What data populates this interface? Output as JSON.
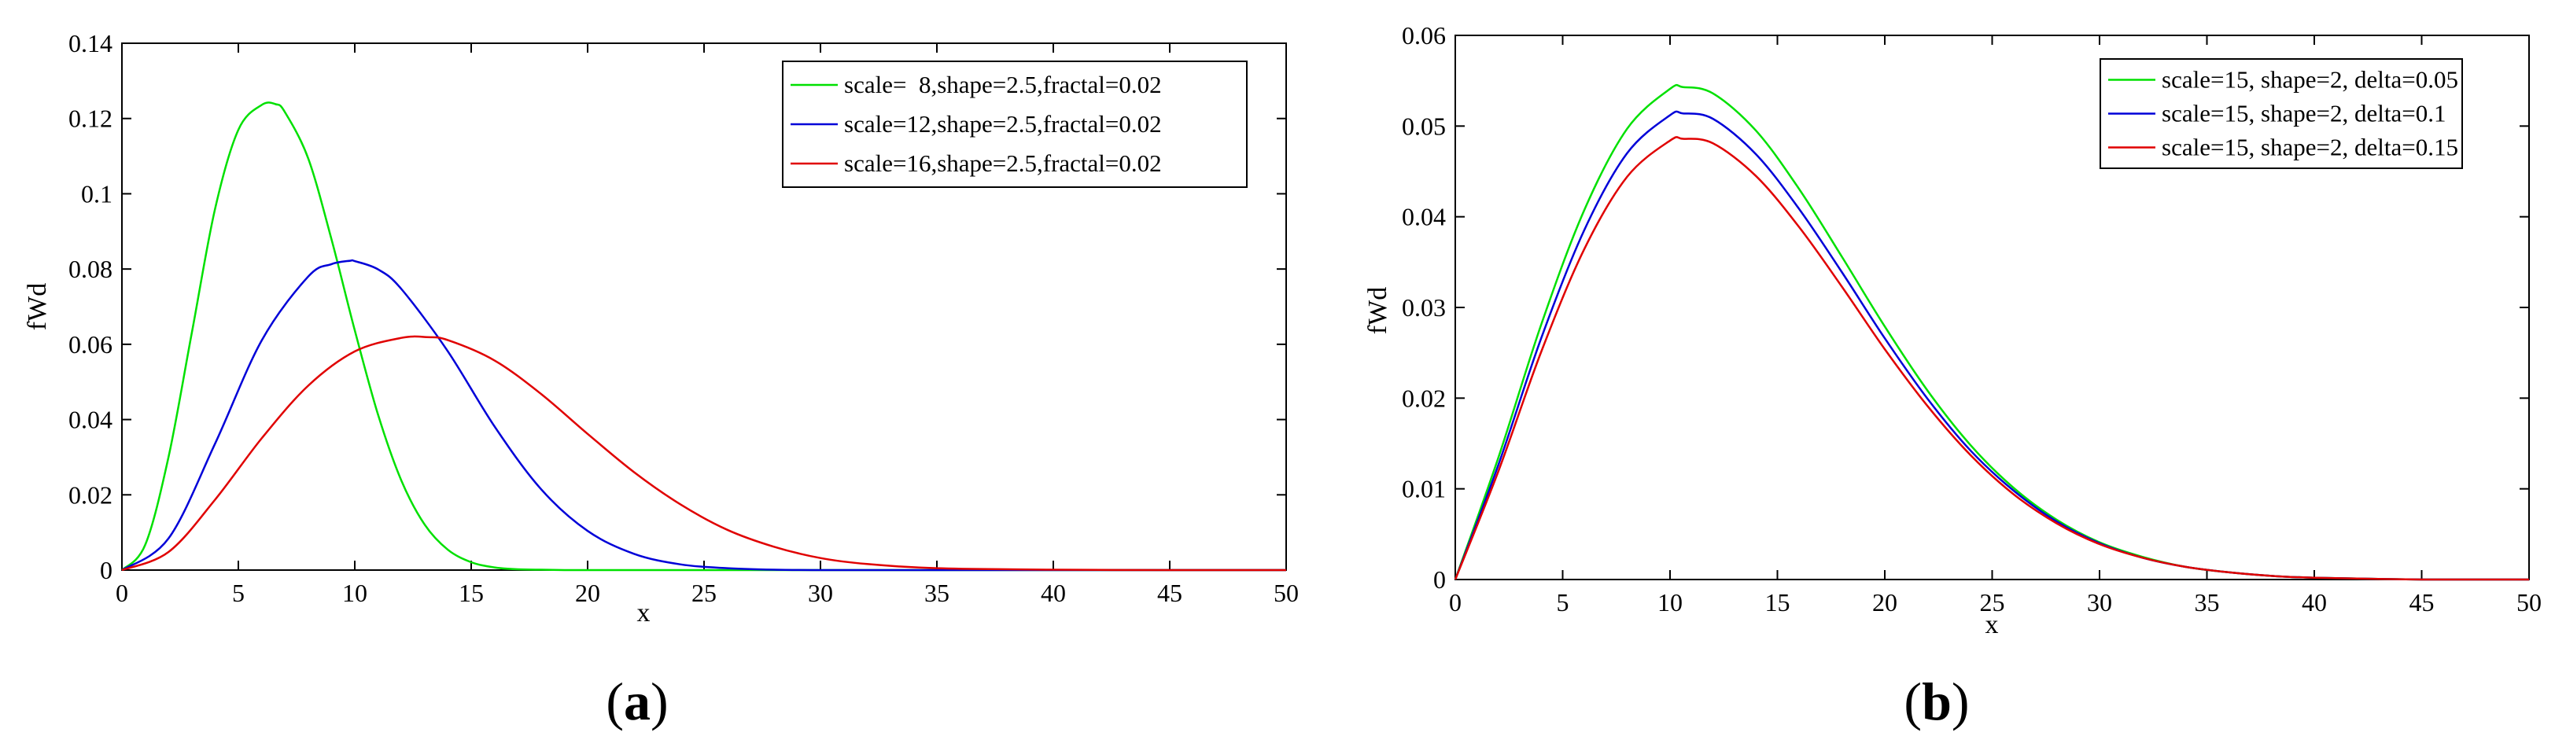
{
  "chart_data": [
    {
      "type": "line",
      "panel_label_open": "(",
      "panel_label_letter": "a",
      "panel_label_close": ")",
      "xlabel": "x",
      "ylabel": "fWd",
      "xlim": [
        0,
        50
      ],
      "ylim": [
        0,
        0.14
      ],
      "xticks": [
        "0",
        "5",
        "10",
        "15",
        "20",
        "25",
        "30",
        "35",
        "40",
        "45",
        "50"
      ],
      "yticks": [
        "0",
        "0.02",
        "0.04",
        "0.06",
        "0.08",
        "0.1",
        "0.12",
        "0.14"
      ],
      "grid": false,
      "legend_position": "top-right",
      "series": [
        {
          "name": "scale=  8,shape=2.5,fractal=0.02",
          "color": "#00e000",
          "x": [
            0,
            1,
            2,
            3,
            4,
            5,
            6,
            6.6,
            7,
            8,
            9,
            10,
            11,
            12,
            13,
            14,
            15,
            16,
            17,
            18,
            19,
            20,
            22,
            25,
            30,
            40,
            50
          ],
          "y": [
            0,
            0.0067,
            0.03,
            0.063,
            0.096,
            0.117,
            0.1236,
            0.1238,
            0.1217,
            0.1094,
            0.0879,
            0.0637,
            0.0413,
            0.0238,
            0.0121,
            0.0054,
            0.0021,
            0.0007,
            0.0002,
            0.0001,
            0,
            0,
            0,
            0,
            0,
            0,
            0
          ]
        },
        {
          "name": "scale=12,shape=2.5,fractal=0.02",
          "color": "#0000d8",
          "x": [
            0,
            2,
            4,
            6,
            8,
            9,
            9.8,
            10,
            11,
            12,
            14,
            16,
            18,
            20,
            22,
            24,
            26,
            28,
            30,
            35,
            40,
            50
          ],
          "y": [
            0,
            0.0084,
            0.0336,
            0.061,
            0.078,
            0.0813,
            0.0822,
            0.0821,
            0.0799,
            0.0747,
            0.0581,
            0.0382,
            0.0215,
            0.0104,
            0.0043,
            0.0015,
            0.0005,
            0.0001,
            0,
            0,
            0,
            0
          ]
        },
        {
          "name": "scale=16,shape=2.5,fractal=0.02",
          "color": "#e00000",
          "x": [
            0,
            2,
            4,
            6,
            8,
            10,
            12,
            13.1,
            14,
            16,
            18,
            20,
            22,
            24,
            26,
            28,
            30,
            32,
            35,
            40,
            45,
            50
          ],
          "y": [
            0,
            0.0048,
            0.0187,
            0.035,
            0.049,
            0.0581,
            0.0617,
            0.0619,
            0.0611,
            0.0557,
            0.0468,
            0.0362,
            0.026,
            0.0174,
            0.0107,
            0.0062,
            0.0032,
            0.0016,
            0.0005,
            0.0001,
            0,
            0
          ]
        }
      ]
    },
    {
      "type": "line",
      "panel_label_open": "(",
      "panel_label_letter": "b",
      "panel_label_close": ")",
      "xlabel": "x",
      "ylabel": "fWd",
      "xlim": [
        0,
        50
      ],
      "ylim": [
        0,
        0.06
      ],
      "xticks": [
        "0",
        "5",
        "10",
        "15",
        "20",
        "25",
        "30",
        "35",
        "40",
        "45",
        "50"
      ],
      "yticks": [
        "0",
        "0.01",
        "0.02",
        "0.03",
        "0.04",
        "0.05",
        "0.06"
      ],
      "grid": false,
      "legend_position": "top-right",
      "series": [
        {
          "name": "scale=15, shape=2, delta=0.05",
          "color": "#00e000",
          "x": [
            0,
            2,
            4,
            6,
            8,
            10,
            10.6,
            12,
            14,
            16,
            18,
            20,
            22,
            24,
            26,
            28,
            30,
            32,
            34,
            36,
            38,
            40,
            45,
            50
          ],
          "y": [
            0,
            0.0134,
            0.0281,
            0.0407,
            0.0497,
            0.0541,
            0.0543,
            0.0536,
            0.0495,
            0.0431,
            0.0356,
            0.0279,
            0.0208,
            0.0148,
            0.0101,
            0.0066,
            0.0041,
            0.0025,
            0.0014,
            0.0008,
            0.0004,
            0.0002,
            0,
            0
          ]
        },
        {
          "name": "scale=15, shape=2, delta=0.1",
          "color": "#0000d8",
          "x": [
            0,
            2,
            4,
            6,
            8,
            10,
            10.6,
            12,
            14,
            16,
            18,
            20,
            22,
            24,
            26,
            28,
            30,
            32,
            34,
            36,
            38,
            40,
            45,
            50
          ],
          "y": [
            0,
            0.0126,
            0.0266,
            0.0385,
            0.047,
            0.0512,
            0.0514,
            0.0508,
            0.0469,
            0.0409,
            0.0339,
            0.0266,
            0.0199,
            0.0142,
            0.0098,
            0.0064,
            0.004,
            0.0024,
            0.0014,
            0.0008,
            0.0004,
            0.0002,
            0,
            0
          ]
        },
        {
          "name": "scale=15, shape=2, delta=0.15",
          "color": "#e00000",
          "x": [
            0,
            2,
            4,
            6,
            8,
            10,
            10.6,
            12,
            14,
            16,
            18,
            20,
            22,
            24,
            26,
            28,
            30,
            32,
            34,
            36,
            38,
            40,
            45,
            50
          ],
          "y": [
            0,
            0.0119,
            0.0251,
            0.0364,
            0.0444,
            0.0484,
            0.0486,
            0.0481,
            0.0445,
            0.0389,
            0.0323,
            0.0254,
            0.0191,
            0.0137,
            0.0094,
            0.0062,
            0.0039,
            0.0024,
            0.0014,
            0.0008,
            0.0004,
            0.0002,
            0,
            0
          ]
        }
      ]
    }
  ]
}
